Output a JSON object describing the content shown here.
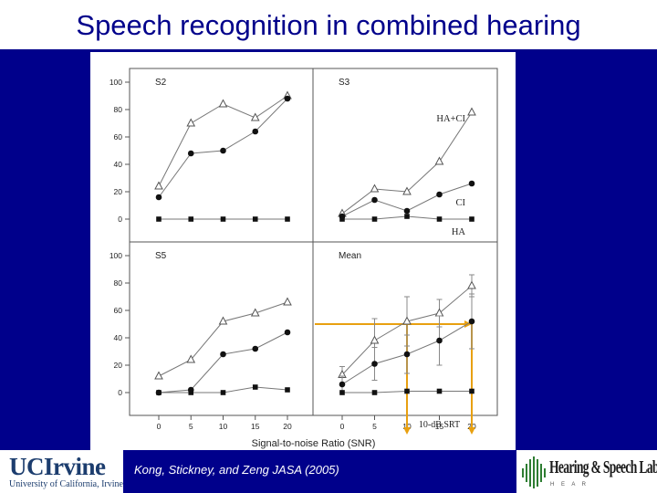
{
  "slide": {
    "title": "Speech recognition in combined hearing",
    "citation": "Kong, Stickney, and Zeng JASA (2005)",
    "uci_logo_text": "UCIrvine",
    "uci_logo_subtext": "University of California, Irvine",
    "lab_logo_text": "Hearing & Speech Lab",
    "lab_logo_subtext": "H E A R"
  },
  "colors": {
    "background": "#00008b",
    "title": "#00008b",
    "srt_arrow": "#e8a010",
    "uci_blue": "#1c3d6e",
    "lab_green": "#2e7d32"
  },
  "chart_data": {
    "type": "line",
    "xlabel": "Signal-to-noise Ratio (SNR)",
    "x": [
      0,
      5,
      10,
      15,
      20
    ],
    "y_ticks": [
      0,
      20,
      40,
      60,
      80,
      100
    ],
    "ylim": [
      0,
      100
    ],
    "panels": [
      {
        "title": "S2",
        "series": [
          {
            "marker": "open-triangle",
            "values": [
              24,
              70,
              84,
              74,
              90
            ]
          },
          {
            "marker": "filled-circle",
            "values": [
              16,
              48,
              50,
              64,
              88
            ]
          },
          {
            "marker": "filled-square",
            "values": [
              0,
              0,
              0,
              0,
              0
            ]
          }
        ]
      },
      {
        "title": "S3",
        "series": [
          {
            "name": "HA+CI",
            "marker": "open-triangle",
            "values": [
              4,
              22,
              20,
              42,
              78
            ]
          },
          {
            "name": "CI",
            "marker": "filled-circle",
            "values": [
              2,
              14,
              6,
              18,
              26
            ]
          },
          {
            "name": "HA",
            "marker": "filled-square",
            "values": [
              0,
              0,
              2,
              0,
              0
            ]
          }
        ]
      },
      {
        "title": "S5",
        "series": [
          {
            "marker": "open-triangle",
            "values": [
              12,
              24,
              52,
              58,
              66
            ]
          },
          {
            "marker": "filled-circle",
            "values": [
              0,
              2,
              28,
              32,
              44
            ]
          },
          {
            "marker": "filled-square",
            "values": [
              0,
              0,
              0,
              4,
              2
            ]
          }
        ]
      },
      {
        "title": "Mean",
        "series": [
          {
            "marker": "open-triangle",
            "values": [
              13,
              38,
              52,
              58,
              78
            ],
            "errors": [
              6,
              16,
              18,
              10,
              8
            ]
          },
          {
            "marker": "filled-circle",
            "values": [
              6,
              21,
              28,
              38,
              52
            ],
            "errors": [
              6,
              12,
              14,
              18,
              20
            ]
          },
          {
            "marker": "filled-square",
            "values": [
              0,
              0,
              1,
              1,
              1
            ]
          }
        ],
        "annotation": {
          "label": "10-dB SRT",
          "level": 50,
          "x_from": 20,
          "x_to": 10
        }
      }
    ]
  }
}
